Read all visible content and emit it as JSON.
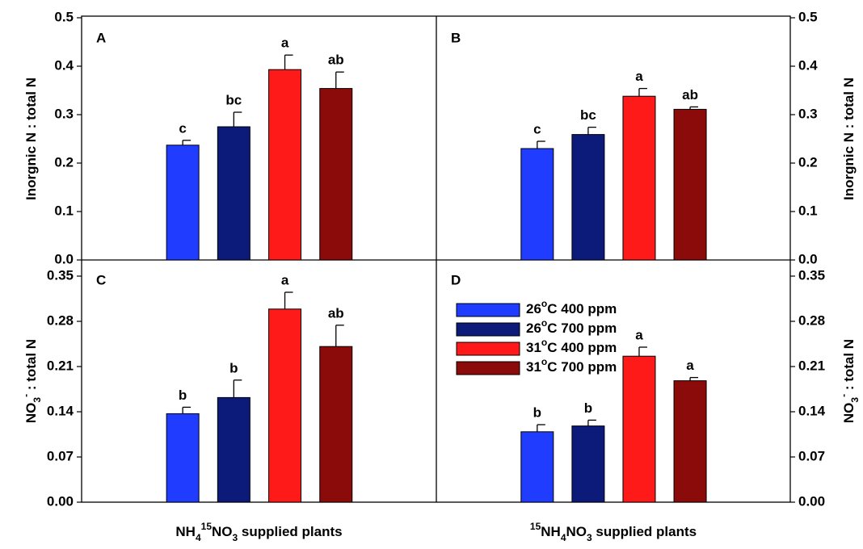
{
  "chart_data": [
    {
      "type": "bar",
      "panel": "A",
      "y_axis_side": "left",
      "y_label": [
        {
          "text": "Inorgnic N : total N"
        }
      ],
      "ylim": [
        0,
        0.5
      ],
      "yticks": [
        {
          "value": 0,
          "label": "0.0"
        },
        0.1,
        0.2,
        0.3,
        0.4,
        0.5
      ],
      "series": [
        {
          "color": "#1f3cff",
          "values": [
            0.237
          ],
          "errors": [
            0.01
          ],
          "annotations": [
            "c"
          ]
        },
        {
          "color": "#0c1a7a",
          "values": [
            0.275
          ],
          "errors": [
            0.03
          ],
          "annotations": [
            "bc"
          ]
        },
        {
          "color": "#ff1a1a",
          "values": [
            0.393
          ],
          "errors": [
            0.03
          ],
          "annotations": [
            "a"
          ]
        },
        {
          "color": "#8b0a0a",
          "values": [
            0.354
          ],
          "errors": [
            0.034
          ],
          "annotations": [
            "ab"
          ]
        }
      ]
    },
    {
      "type": "bar",
      "panel": "B",
      "y_axis_side": "right",
      "y_label": [
        {
          "text": "Inorgnic N : total N"
        }
      ],
      "ylim": [
        0,
        0.5
      ],
      "yticks": [
        {
          "value": 0,
          "label": "0.0"
        },
        0.1,
        0.2,
        0.3,
        0.4,
        0.5
      ],
      "series": [
        {
          "color": "#1f3cff",
          "values": [
            0.23
          ],
          "errors": [
            0.015
          ],
          "annotations": [
            "c"
          ]
        },
        {
          "color": "#0c1a7a",
          "values": [
            0.259
          ],
          "errors": [
            0.015
          ],
          "annotations": [
            "bc"
          ]
        },
        {
          "color": "#ff1a1a",
          "values": [
            0.338
          ],
          "errors": [
            0.016
          ],
          "annotations": [
            "a"
          ]
        },
        {
          "color": "#8b0a0a",
          "values": [
            0.311
          ],
          "errors": [
            0.005
          ],
          "annotations": [
            "ab"
          ]
        }
      ]
    },
    {
      "type": "bar",
      "panel": "C",
      "y_axis_side": "left",
      "y_label": [
        {
          "text": "NO"
        },
        {
          "text": "3",
          "sub": true
        },
        {
          "text": "-",
          "sup": true
        },
        {
          "text": " : total N"
        }
      ],
      "x_label": [
        {
          "text": "NH"
        },
        {
          "text": "4",
          "sub": true
        },
        {
          "text": "15",
          "sup": true
        },
        {
          "text": "NO"
        },
        {
          "text": "3",
          "sub": true
        },
        {
          "text": " supplied plants"
        }
      ],
      "ylim": [
        0,
        0.375
      ],
      "yticks": [
        {
          "value": 0,
          "label": "0.00"
        },
        0.07,
        0.14,
        0.21,
        0.28,
        0.35
      ],
      "series": [
        {
          "color": "#1f3cff",
          "values": [
            0.137
          ],
          "errors": [
            0.01
          ],
          "annotations": [
            "b"
          ]
        },
        {
          "color": "#0c1a7a",
          "values": [
            0.162
          ],
          "errors": [
            0.027
          ],
          "annotations": [
            "b"
          ]
        },
        {
          "color": "#ff1a1a",
          "values": [
            0.299
          ],
          "errors": [
            0.026
          ],
          "annotations": [
            "a"
          ]
        },
        {
          "color": "#8b0a0a",
          "values": [
            0.241
          ],
          "errors": [
            0.033
          ],
          "annotations": [
            "ab"
          ]
        }
      ]
    },
    {
      "type": "bar",
      "panel": "D",
      "y_axis_side": "right",
      "legend": "upper left",
      "y_label": [
        {
          "text": "NO"
        },
        {
          "text": "3",
          "sub": true
        },
        {
          "text": "-",
          "sup": true
        },
        {
          "text": " : total N"
        }
      ],
      "x_label": [
        {
          "text": "15",
          "sup": true
        },
        {
          "text": "NH"
        },
        {
          "text": "4",
          "sub": true
        },
        {
          "text": "NO"
        },
        {
          "text": "3",
          "sub": true
        },
        {
          "text": " supplied plants"
        }
      ],
      "ylim": [
        0,
        0.375
      ],
      "yticks": [
        {
          "value": 0,
          "label": "0.00"
        },
        0.07,
        0.14,
        0.21,
        0.28,
        0.35
      ],
      "series": [
        {
          "name": [
            {
              "text": "26"
            },
            {
              "text": "o",
              "sup": true
            },
            {
              "text": "C 400 ppm"
            }
          ],
          "color": "#1f3cff",
          "values": [
            0.109
          ],
          "errors": [
            0.011
          ],
          "annotations": [
            "b"
          ]
        },
        {
          "name": [
            {
              "text": "26"
            },
            {
              "text": "o",
              "sup": true
            },
            {
              "text": "C 700 ppm"
            }
          ],
          "color": "#0c1a7a",
          "values": [
            0.118
          ],
          "errors": [
            0.009
          ],
          "annotations": [
            "b"
          ]
        },
        {
          "name": [
            {
              "text": "31"
            },
            {
              "text": "o",
              "sup": true
            },
            {
              "text": "C 400 ppm"
            }
          ],
          "color": "#ff1a1a",
          "values": [
            0.226
          ],
          "errors": [
            0.014
          ],
          "annotations": [
            "a"
          ]
        },
        {
          "name": [
            {
              "text": "31"
            },
            {
              "text": "o",
              "sup": true
            },
            {
              "text": "C 700 ppm"
            }
          ],
          "color": "#8b0a0a",
          "values": [
            0.188
          ],
          "errors": [
            0.005
          ],
          "annotations": [
            "a"
          ]
        }
      ]
    }
  ]
}
